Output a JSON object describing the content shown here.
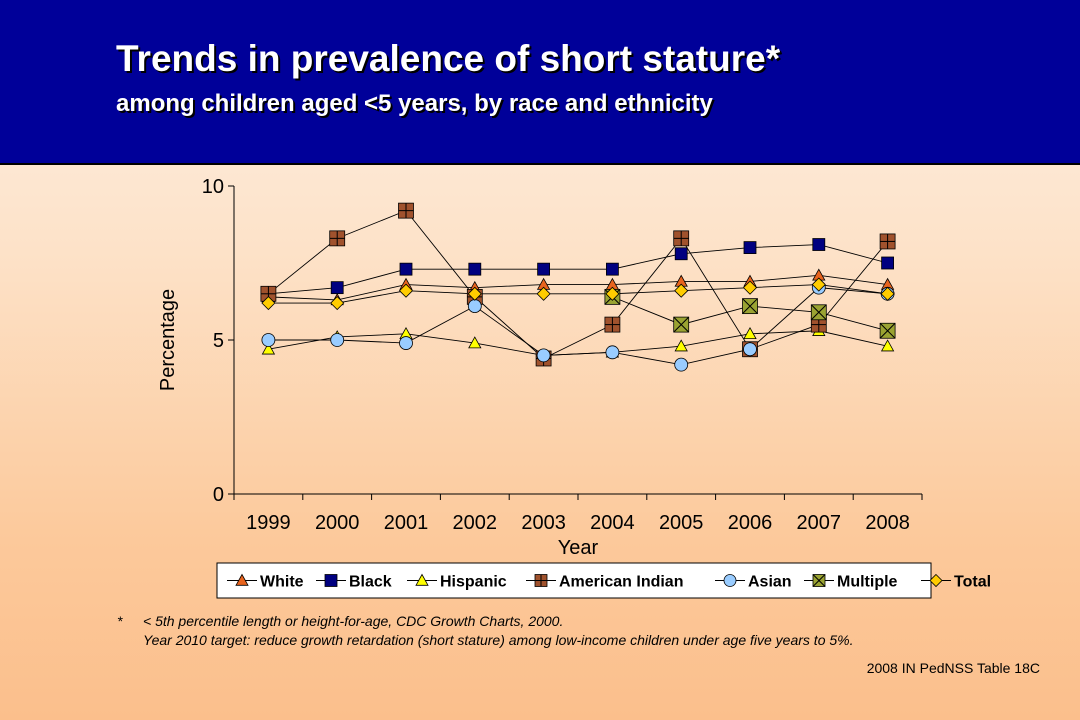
{
  "header": {
    "title": "Trends in prevalence of short stature*",
    "subtitle": "among children aged <5 years, by race and ethnicity"
  },
  "chart_data": {
    "type": "line",
    "xlabel": "Year",
    "ylabel": "Percentage",
    "ylim": [
      0,
      10
    ],
    "yticks": [
      0,
      5,
      10
    ],
    "categories": [
      "1999",
      "2000",
      "2001",
      "2002",
      "2003",
      "2004",
      "2005",
      "2006",
      "2007",
      "2008"
    ],
    "grid": false,
    "legend": "bottom",
    "series": [
      {
        "name": "White",
        "color": "#e8641e",
        "marker": "triangle",
        "values": [
          6.4,
          6.3,
          6.8,
          6.7,
          6.8,
          6.8,
          6.9,
          6.9,
          7.1,
          6.8
        ]
      },
      {
        "name": "Black",
        "color": "#000080",
        "marker": "square",
        "values": [
          6.5,
          6.7,
          7.3,
          7.3,
          7.3,
          7.3,
          7.8,
          8.0,
          8.1,
          7.5
        ]
      },
      {
        "name": "Hispanic",
        "color": "#ffff00",
        "marker": "triangle",
        "values": [
          4.7,
          5.1,
          5.2,
          4.9,
          4.5,
          4.6,
          4.8,
          5.2,
          5.3,
          4.8
        ]
      },
      {
        "name": "American Indian",
        "color": "#a0522d",
        "marker": "square-plus",
        "values": [
          6.5,
          8.3,
          9.2,
          6.4,
          4.4,
          5.5,
          8.3,
          4.7,
          5.5,
          8.2
        ]
      },
      {
        "name": "Asian",
        "color": "#99ccff",
        "marker": "circle",
        "values": [
          5.0,
          5.0,
          4.9,
          6.1,
          4.5,
          4.6,
          4.2,
          4.7,
          6.7,
          6.5
        ]
      },
      {
        "name": "Multiple",
        "color": "#9aa332",
        "marker": "square-x",
        "values": [
          null,
          null,
          null,
          null,
          null,
          6.4,
          5.5,
          6.1,
          5.9,
          5.3
        ]
      },
      {
        "name": "Total",
        "color": "#ffcc00",
        "marker": "diamond",
        "values": [
          6.2,
          6.2,
          6.6,
          6.5,
          6.5,
          6.5,
          6.6,
          6.7,
          6.8,
          6.5
        ]
      }
    ]
  },
  "footnote": {
    "star": "*",
    "line1": "< 5th percentile length or height-for-age, CDC Growth Charts, 2000.",
    "line2": "Year 2010 target: reduce growth retardation (short stature) among low-income children under age five years to 5%."
  },
  "source": "2008 IN PedNSS Table 18C"
}
